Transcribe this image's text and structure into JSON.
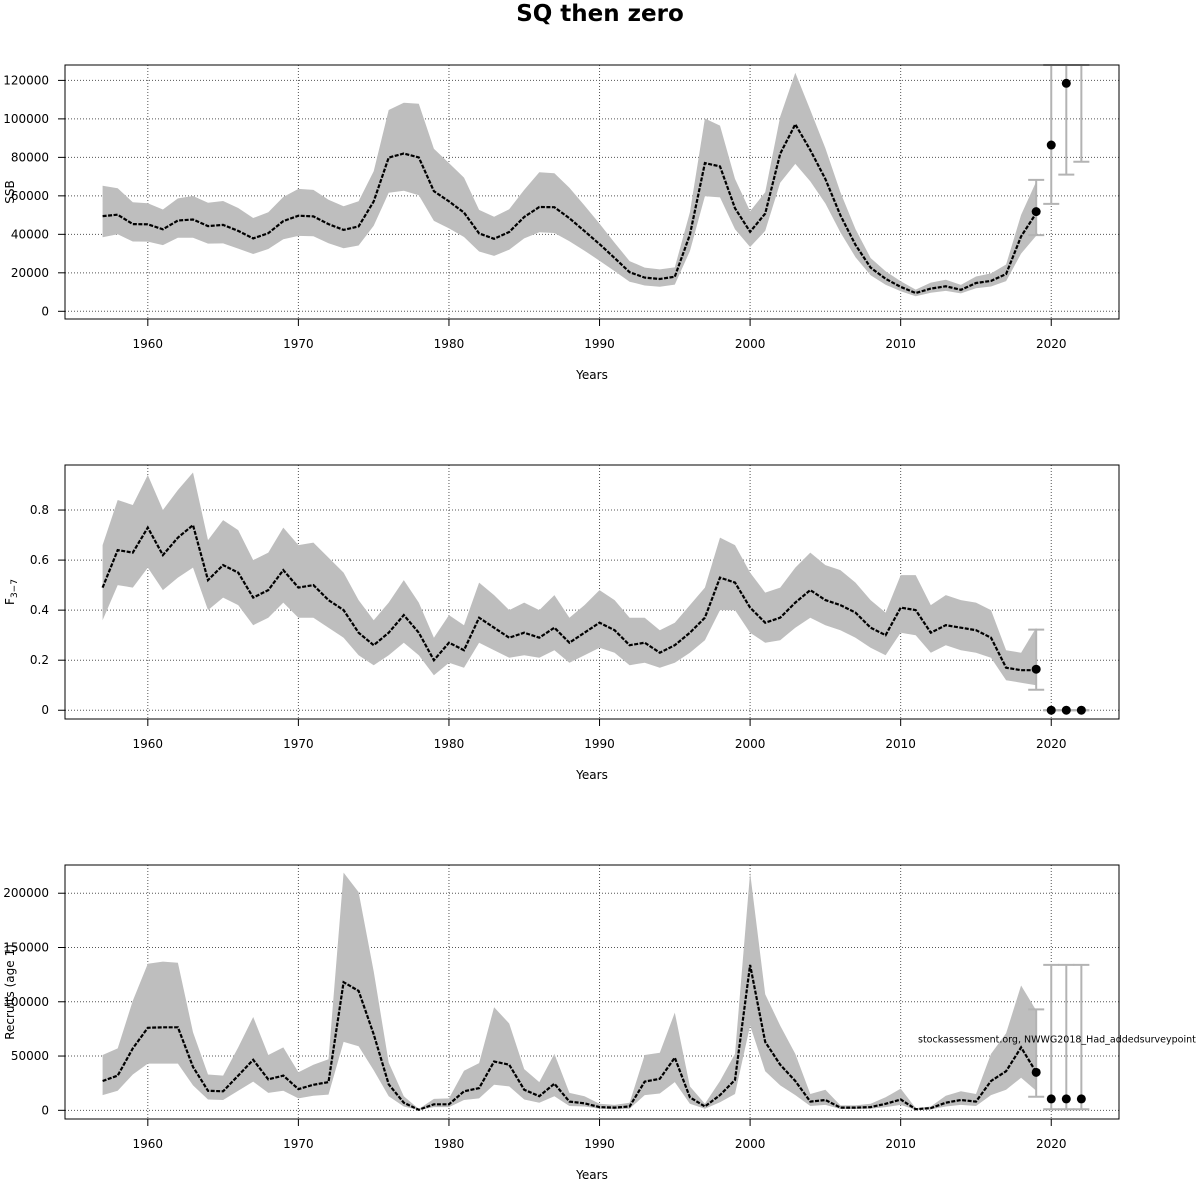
{
  "title": "SQ then zero",
  "colors": {
    "band": "#bebebe",
    "line": "#000000",
    "errorbar": "#b3b3b3",
    "grid": "#555555"
  },
  "chart_data": [
    {
      "type": "line",
      "title": "",
      "xlabel": "Years",
      "ylabel": "SSB",
      "xlim": [
        1954.5,
        2024.5
      ],
      "ylim": [
        -4000,
        128000
      ],
      "xticks": [
        1960,
        1970,
        1980,
        1990,
        2000,
        2010,
        2020
      ],
      "yticks": [
        0,
        20000,
        40000,
        60000,
        80000,
        100000,
        120000
      ],
      "grid": true,
      "estimate": {
        "x": [
          1957,
          1958,
          1959,
          1960,
          1961,
          1962,
          1963,
          1964,
          1965,
          1966,
          1967,
          1968,
          1969,
          1970,
          1971,
          1972,
          1973,
          1974,
          1975,
          1976,
          1977,
          1978,
          1979,
          1980,
          1981,
          1982,
          1983,
          1984,
          1985,
          1986,
          1987,
          1988,
          1989,
          1990,
          1991,
          1992,
          1993,
          1994,
          1995,
          1996,
          1997,
          1998,
          1999,
          2000,
          2001,
          2002,
          2003,
          2004,
          2005,
          2006,
          2007,
          2008,
          2009,
          2010,
          2011,
          2012,
          2013,
          2014,
          2015,
          2016,
          2017,
          2018,
          2019
        ],
        "y": [
          49500,
          50200,
          45300,
          45200,
          42600,
          47200,
          47700,
          44300,
          44900,
          41800,
          37900,
          40600,
          46900,
          49700,
          49300,
          45300,
          42300,
          44100,
          57100,
          79900,
          82000,
          80000,
          62400,
          57100,
          51300,
          40500,
          37700,
          41200,
          49000,
          54200,
          54100,
          48400,
          41700,
          34900,
          27700,
          20300,
          17500,
          16800,
          18000,
          39800,
          77000,
          75300,
          53600,
          41300,
          50800,
          81900,
          97200,
          83800,
          68700,
          49900,
          34500,
          22700,
          16900,
          12700,
          9500,
          11800,
          13000,
          11200,
          14700,
          15800,
          19400,
          38900,
          51000
        ],
        "lower": [
          38500,
          40000,
          36300,
          36200,
          34400,
          38200,
          38200,
          35200,
          35300,
          32600,
          29800,
          32400,
          37400,
          39200,
          39000,
          35400,
          32800,
          34200,
          44500,
          61600,
          62600,
          60300,
          47000,
          43100,
          38600,
          31100,
          28800,
          32000,
          37900,
          41100,
          40700,
          36400,
          31500,
          26300,
          20900,
          15400,
          13400,
          12800,
          13900,
          31300,
          59800,
          59200,
          42600,
          33400,
          41800,
          66800,
          76600,
          67500,
          56000,
          41000,
          28100,
          18700,
          13800,
          10400,
          7800,
          9600,
          10600,
          9300,
          12000,
          12900,
          15700,
          30000,
          39300
        ],
        "upper": [
          65300,
          63900,
          56700,
          56200,
          52900,
          58700,
          59900,
          56400,
          57300,
          53700,
          48500,
          51500,
          59400,
          63600,
          63100,
          58000,
          54600,
          57200,
          72800,
          104600,
          108400,
          107900,
          84500,
          77000,
          69500,
          52700,
          49100,
          53000,
          63100,
          72300,
          71700,
          64200,
          55000,
          45600,
          35600,
          26100,
          22700,
          21800,
          22800,
          51500,
          100200,
          96500,
          68800,
          52000,
          61900,
          101200,
          124000,
          104600,
          84700,
          61900,
          42700,
          27700,
          20800,
          15600,
          11300,
          14900,
          16400,
          13700,
          18100,
          19700,
          24300,
          50100,
          67400
        ]
      },
      "forecast": {
        "x": [
          2019,
          2020,
          2021
        ],
        "y": [
          51800,
          86400,
          118500
        ],
        "lower": [
          39600,
          55800,
          71000
        ],
        "upper": [
          68300,
          128000,
          128000
        ]
      },
      "errorbar_extra": {
        "x": 2022,
        "lower": 77700,
        "upper": 128000
      }
    },
    {
      "type": "line",
      "title": "",
      "xlabel": "Years",
      "ylabel_main": "F",
      "ylabel_sub": "3−7",
      "xlim": [
        1954.5,
        2024.5
      ],
      "ylim": [
        -0.035,
        0.98
      ],
      "xticks": [
        1960,
        1970,
        1980,
        1990,
        2000,
        2010,
        2020
      ],
      "yticks": [
        0.0,
        0.2,
        0.4,
        0.6,
        0.8
      ],
      "grid": true,
      "estimate": {
        "x": [
          1957,
          1958,
          1959,
          1960,
          1961,
          1962,
          1963,
          1964,
          1965,
          1966,
          1967,
          1968,
          1969,
          1970,
          1971,
          1972,
          1973,
          1974,
          1975,
          1976,
          1977,
          1978,
          1979,
          1980,
          1981,
          1982,
          1983,
          1984,
          1985,
          1986,
          1987,
          1988,
          1989,
          1990,
          1991,
          1992,
          1993,
          1994,
          1995,
          1996,
          1997,
          1998,
          1999,
          2000,
          2001,
          2002,
          2003,
          2004,
          2005,
          2006,
          2007,
          2008,
          2009,
          2010,
          2011,
          2012,
          2013,
          2014,
          2015,
          2016,
          2017,
          2018,
          2019
        ],
        "y": [
          0.49,
          0.64,
          0.63,
          0.73,
          0.62,
          0.69,
          0.74,
          0.52,
          0.58,
          0.55,
          0.45,
          0.48,
          0.56,
          0.49,
          0.5,
          0.44,
          0.4,
          0.31,
          0.26,
          0.31,
          0.38,
          0.31,
          0.2,
          0.27,
          0.24,
          0.37,
          0.33,
          0.29,
          0.31,
          0.29,
          0.33,
          0.27,
          0.31,
          0.35,
          0.32,
          0.26,
          0.27,
          0.23,
          0.26,
          0.31,
          0.37,
          0.53,
          0.51,
          0.41,
          0.35,
          0.37,
          0.43,
          0.48,
          0.44,
          0.42,
          0.39,
          0.33,
          0.3,
          0.41,
          0.4,
          0.31,
          0.34,
          0.33,
          0.32,
          0.29,
          0.17,
          0.16,
          0.16
        ],
        "lower": [
          0.36,
          0.5,
          0.49,
          0.57,
          0.48,
          0.53,
          0.57,
          0.4,
          0.45,
          0.42,
          0.34,
          0.37,
          0.43,
          0.37,
          0.37,
          0.33,
          0.29,
          0.22,
          0.18,
          0.22,
          0.27,
          0.22,
          0.14,
          0.19,
          0.17,
          0.27,
          0.24,
          0.21,
          0.22,
          0.21,
          0.24,
          0.19,
          0.22,
          0.25,
          0.23,
          0.18,
          0.19,
          0.17,
          0.19,
          0.23,
          0.28,
          0.4,
          0.4,
          0.31,
          0.27,
          0.28,
          0.33,
          0.37,
          0.34,
          0.32,
          0.29,
          0.25,
          0.22,
          0.31,
          0.3,
          0.23,
          0.26,
          0.24,
          0.23,
          0.21,
          0.12,
          0.11,
          0.1
        ],
        "upper": [
          0.66,
          0.84,
          0.82,
          0.94,
          0.8,
          0.88,
          0.95,
          0.68,
          0.76,
          0.72,
          0.6,
          0.63,
          0.73,
          0.66,
          0.67,
          0.61,
          0.55,
          0.44,
          0.36,
          0.43,
          0.52,
          0.43,
          0.29,
          0.38,
          0.34,
          0.51,
          0.46,
          0.4,
          0.43,
          0.4,
          0.46,
          0.37,
          0.42,
          0.48,
          0.44,
          0.37,
          0.37,
          0.32,
          0.35,
          0.42,
          0.49,
          0.69,
          0.66,
          0.55,
          0.47,
          0.49,
          0.57,
          0.63,
          0.58,
          0.56,
          0.51,
          0.44,
          0.39,
          0.54,
          0.54,
          0.42,
          0.46,
          0.44,
          0.43,
          0.4,
          0.24,
          0.23,
          0.33
        ]
      },
      "forecast": {
        "x": [
          2019,
          2020,
          2021,
          2022
        ],
        "y": [
          0.164,
          0.0,
          0.0,
          0.0
        ],
        "lower": [
          0.082,
          0.0,
          0.0,
          0.0
        ],
        "upper": [
          0.322,
          0.0,
          0.0,
          0.0
        ]
      }
    },
    {
      "type": "line",
      "title": "",
      "xlabel": "Years",
      "ylabel": "Recruits (age 1)",
      "annotation": "stockassessment.org, NWWG2018_Had_addedsurveypoint",
      "xlim": [
        1954.5,
        2024.5
      ],
      "ylim": [
        -8000,
        226000
      ],
      "xticks": [
        1960,
        1970,
        1980,
        1990,
        2000,
        2010,
        2020
      ],
      "yticks": [
        0,
        50000,
        100000,
        150000,
        200000
      ],
      "grid": true,
      "estimate": {
        "x": [
          1957,
          1958,
          1959,
          1960,
          1961,
          1962,
          1963,
          1964,
          1965,
          1966,
          1967,
          1968,
          1969,
          1970,
          1971,
          1972,
          1973,
          1974,
          1975,
          1976,
          1977,
          1978,
          1979,
          1980,
          1981,
          1982,
          1983,
          1984,
          1985,
          1986,
          1987,
          1988,
          1989,
          1990,
          1991,
          1992,
          1993,
          1994,
          1995,
          1996,
          1997,
          1998,
          1999,
          2000,
          2001,
          2002,
          2003,
          2004,
          2005,
          2006,
          2007,
          2008,
          2009,
          2010,
          2011,
          2012,
          2013,
          2014,
          2015,
          2016,
          2017,
          2018,
          2019
        ],
        "y": [
          27000,
          32000,
          57000,
          76000,
          76500,
          76500,
          40000,
          18000,
          17500,
          32000,
          46500,
          28500,
          32000,
          19500,
          23500,
          26000,
          118000,
          110000,
          70000,
          24000,
          7000,
          500,
          5500,
          5500,
          17500,
          20500,
          45000,
          42000,
          19000,
          13000,
          24500,
          8000,
          6500,
          3000,
          2500,
          3500,
          26500,
          29000,
          48500,
          12000,
          3500,
          14000,
          28000,
          134000,
          63000,
          42000,
          27000,
          8000,
          9500,
          2500,
          2500,
          3000,
          6000,
          10000,
          1000,
          2000,
          7000,
          9500,
          8000,
          27000,
          36000,
          58000,
          35000
        ],
        "lower": [
          14000,
          18000,
          33000,
          43000,
          43000,
          43000,
          23000,
          10000,
          9500,
          18000,
          26500,
          16000,
          18000,
          11000,
          13500,
          14500,
          63000,
          59000,
          37000,
          13000,
          3500,
          200,
          3000,
          3000,
          9500,
          11000,
          23500,
          22000,
          10000,
          7000,
          13000,
          4000,
          3500,
          1500,
          1000,
          1500,
          14000,
          15500,
          26000,
          6000,
          1500,
          7500,
          15000,
          78000,
          36000,
          23000,
          14000,
          4000,
          5000,
          1200,
          1200,
          1500,
          3000,
          5000,
          400,
          800,
          3500,
          5000,
          4000,
          14000,
          19000,
          30000,
          18000
        ],
        "upper": [
          51000,
          57000,
          101000,
          135000,
          137000,
          136000,
          72000,
          33000,
          32000,
          58000,
          86000,
          51000,
          58000,
          35000,
          42000,
          47000,
          219000,
          201000,
          128000,
          44000,
          13000,
          1200,
          10500,
          11000,
          36500,
          43500,
          95000,
          80000,
          38000,
          26000,
          52000,
          16000,
          13000,
          6000,
          5000,
          7000,
          51000,
          53000,
          90000,
          22000,
          6000,
          27000,
          52000,
          219000,
          107000,
          78000,
          52000,
          15000,
          19000,
          4500,
          4500,
          6000,
          12000,
          20000,
          2000,
          3500,
          13500,
          17500,
          15000,
          52000,
          71000,
          115000,
          92000
        ]
      },
      "forecast": {
        "x": [
          2019,
          2020,
          2021,
          2022
        ],
        "y": [
          35000,
          10500,
          10500,
          10500
        ],
        "lower": [
          12500,
          1000,
          1000,
          1000
        ],
        "upper": [
          93000,
          134000,
          134000,
          134000
        ]
      }
    }
  ]
}
